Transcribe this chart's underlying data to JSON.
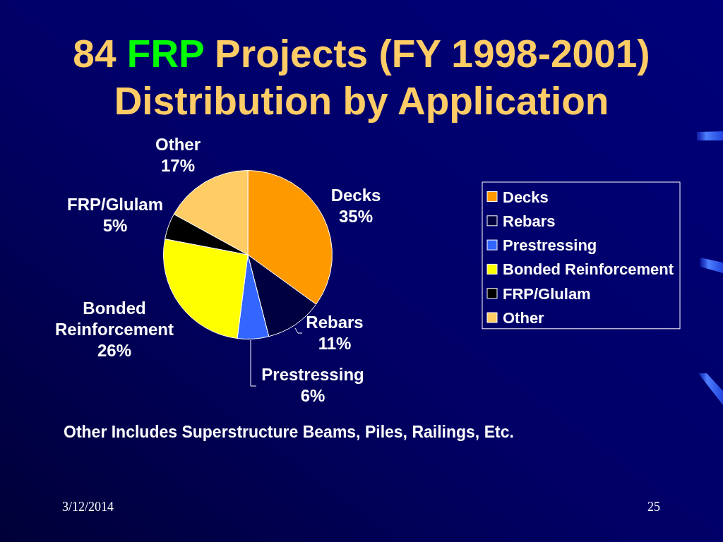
{
  "chart_data": {
    "type": "pie",
    "title": "84 FRP Projects (FY 1998-2001)\nDistribution by Application",
    "categories": [
      "Decks",
      "Rebars",
      "Prestressing",
      "Bonded Reinforcement",
      "FRP/Glulam",
      "Other"
    ],
    "values": [
      35,
      11,
      6,
      26,
      5,
      17
    ],
    "colors": [
      "#ff9900",
      "#000040",
      "#3366ff",
      "#ffff00",
      "#000000",
      "#ffcc66"
    ],
    "value_labels": [
      "35%",
      "11%",
      "6%",
      "26%",
      "5%",
      "17%"
    ],
    "legend": "right",
    "annotations": [
      "Other Includes Superstructure Beams, Piles, Railings, Etc.",
      "3/12/2014",
      "25"
    ]
  }
}
